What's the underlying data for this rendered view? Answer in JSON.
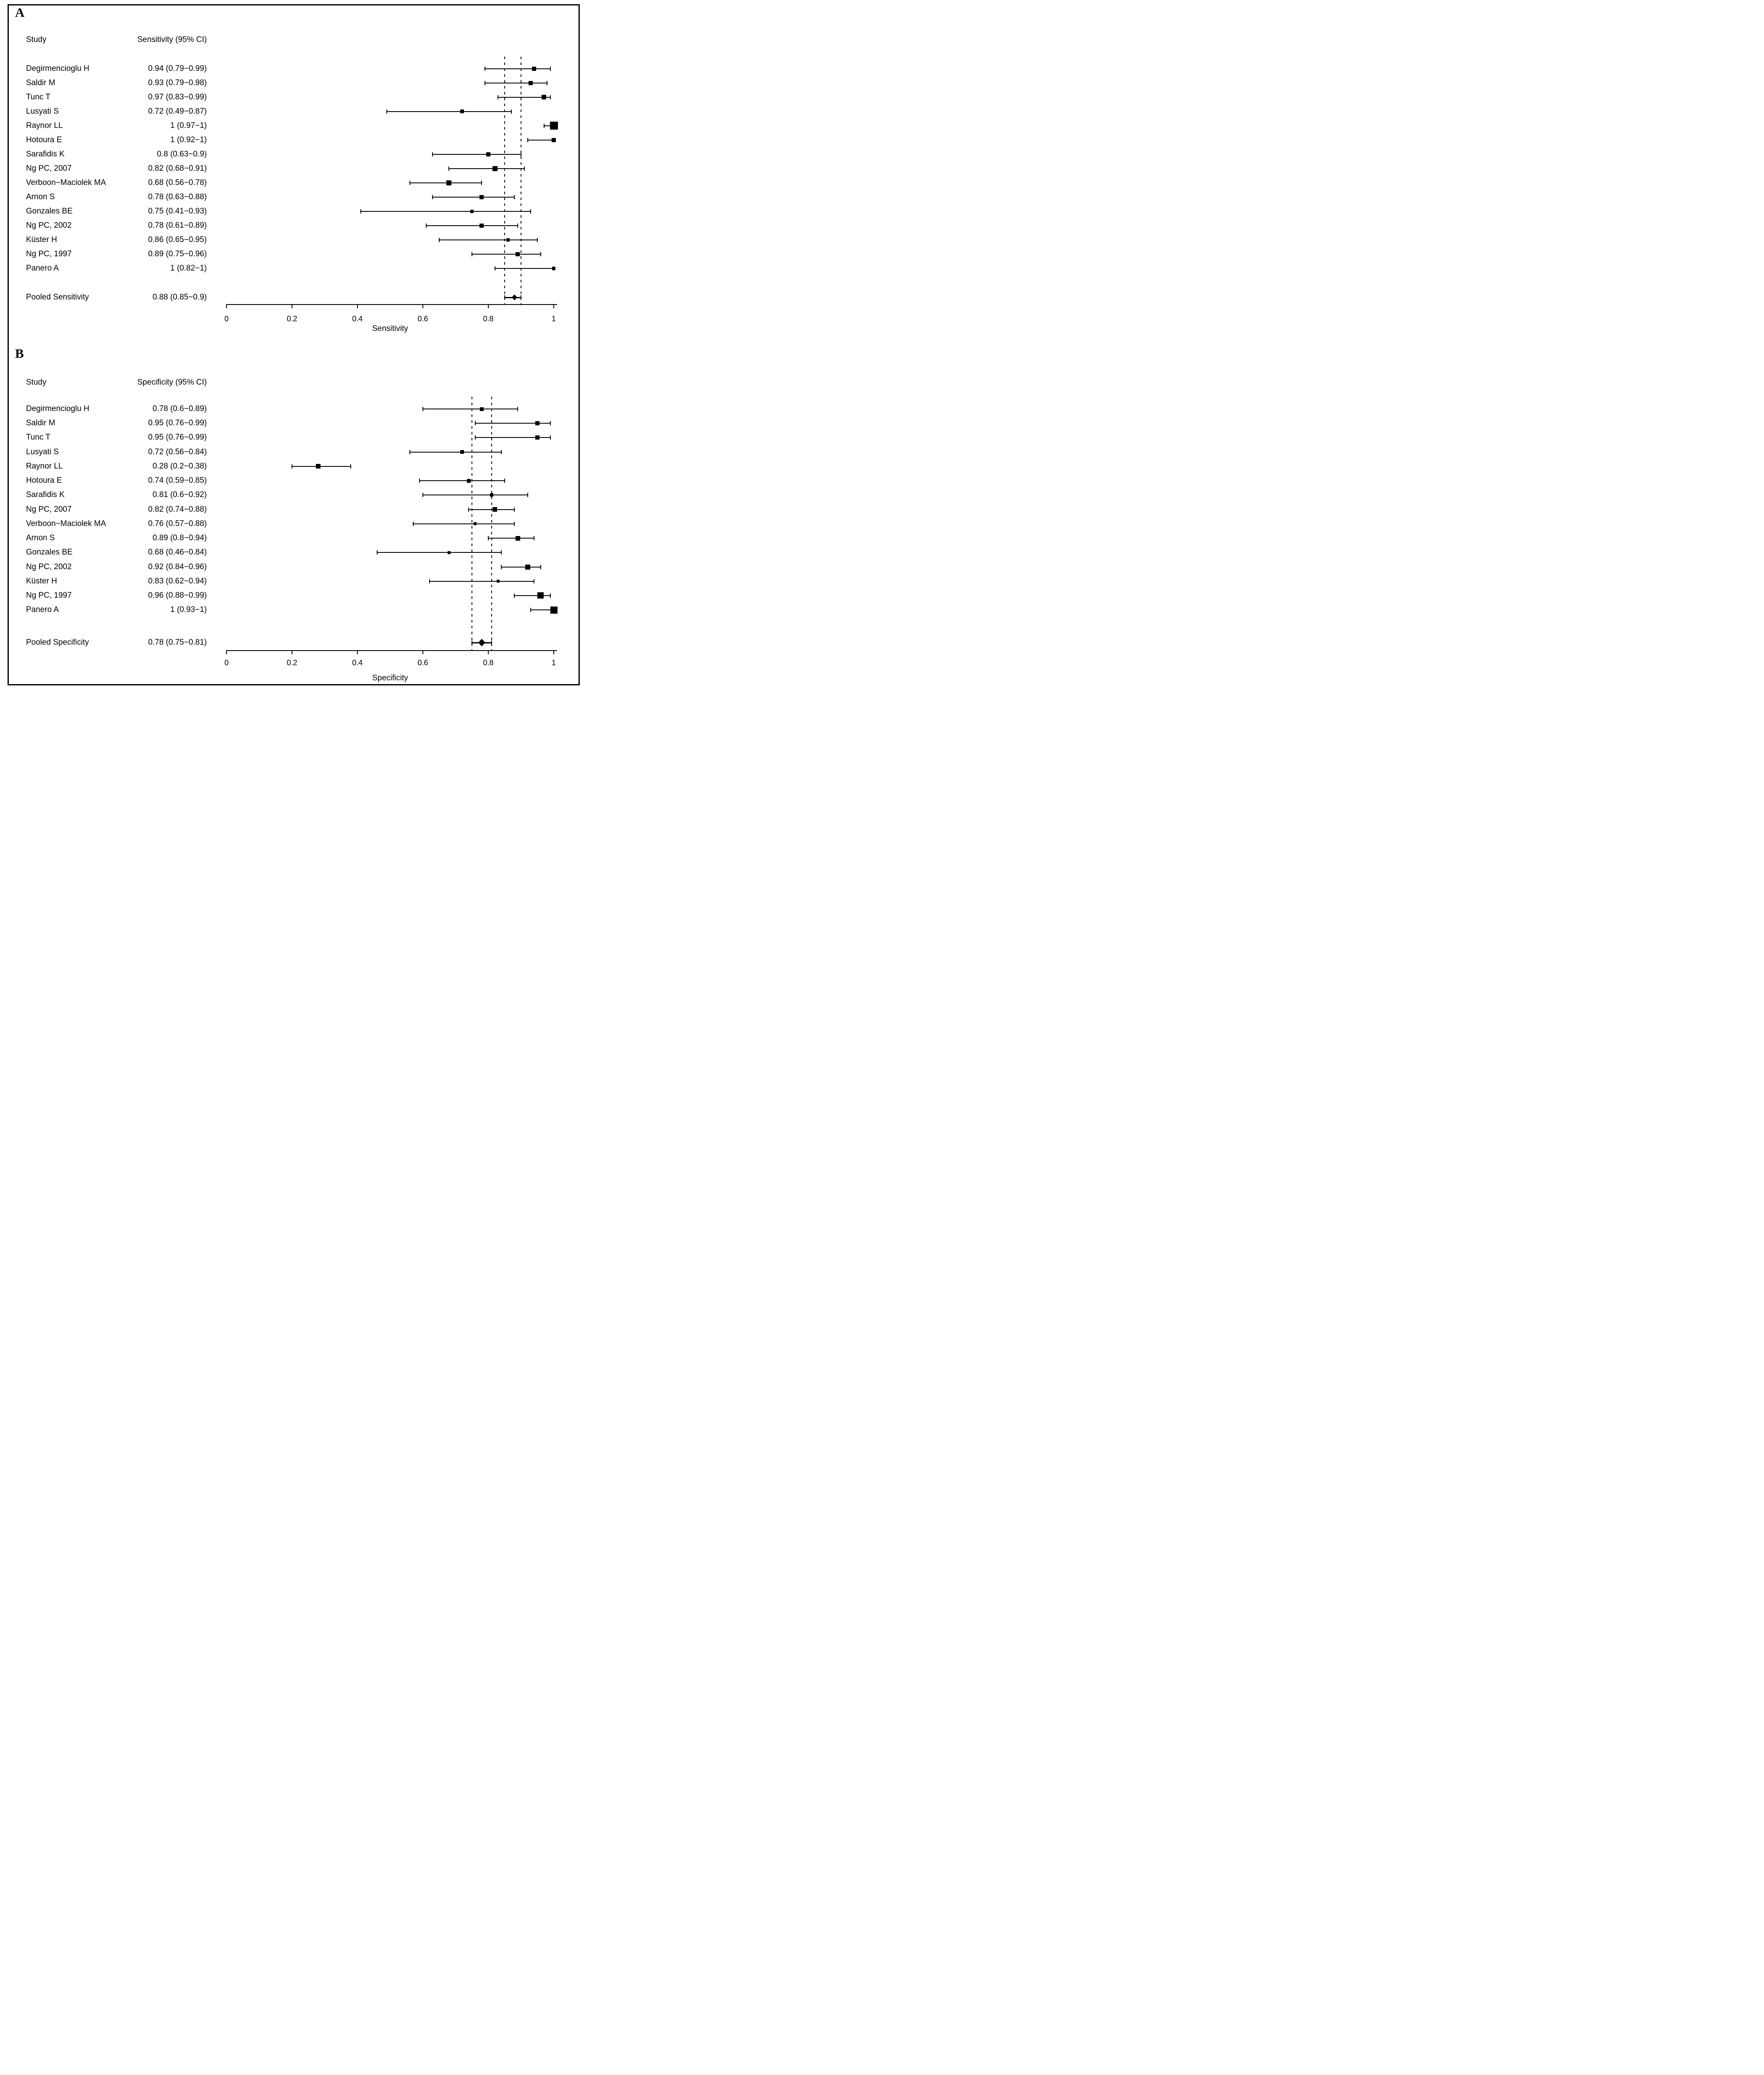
{
  "figure": {
    "background": "#ffffff",
    "border_color": "#000000",
    "ink_color": "#000000"
  },
  "chart_data": [
    {
      "type": "scatter",
      "subtype": "forest-plot",
      "panel_label": "A",
      "columns": {
        "study": "Study",
        "value": "Sensitivity (95% CI)"
      },
      "xlabel": "Sensitivity",
      "xlim": [
        0,
        1
      ],
      "x_ticks": [
        0,
        0.2,
        0.4,
        0.6,
        0.8,
        1
      ],
      "x_tick_labels": [
        "0",
        "0.2",
        "0.4",
        "0.6",
        "0.8",
        "1"
      ],
      "dashed_reference_lines": [
        0.85,
        0.9
      ],
      "grid": false,
      "legend": "none",
      "studies": [
        {
          "name": "Degirmencioglu H",
          "value_label": "0.94 (0.79−0.99)",
          "estimate": 0.94,
          "ci_low": 0.79,
          "ci_high": 0.99,
          "marker_px": 10
        },
        {
          "name": "Saldir M",
          "value_label": "0.93 (0.79−0.98)",
          "estimate": 0.93,
          "ci_low": 0.79,
          "ci_high": 0.98,
          "marker_px": 10
        },
        {
          "name": "Tunc T",
          "value_label": "0.97 (0.83−0.99)",
          "estimate": 0.97,
          "ci_low": 0.83,
          "ci_high": 0.99,
          "marker_px": 11
        },
        {
          "name": "Lusyati S",
          "value_label": "0.72 (0.49−0.87)",
          "estimate": 0.72,
          "ci_low": 0.49,
          "ci_high": 0.87,
          "marker_px": 9
        },
        {
          "name": "Raynor LL",
          "value_label": "1 (0.97−1)",
          "estimate": 1,
          "ci_low": 0.97,
          "ci_high": 1,
          "marker_px": 19
        },
        {
          "name": "Hotoura E",
          "value_label": "1 (0.92−1)",
          "estimate": 1,
          "ci_low": 0.92,
          "ci_high": 1,
          "marker_px": 10
        },
        {
          "name": "Sarafidis K",
          "value_label": "0.8 (0.63−0.9)",
          "estimate": 0.8,
          "ci_low": 0.63,
          "ci_high": 0.9,
          "marker_px": 10
        },
        {
          "name": "Ng PC, 2007",
          "value_label": "0.82 (0.68−0.91)",
          "estimate": 0.82,
          "ci_low": 0.68,
          "ci_high": 0.91,
          "marker_px": 12
        },
        {
          "name": "Verboon−Maciolek MA",
          "value_label": "0.68 (0.56−0.78)",
          "estimate": 0.68,
          "ci_low": 0.56,
          "ci_high": 0.78,
          "marker_px": 12
        },
        {
          "name": "Arnon S",
          "value_label": "0.78 (0.63−0.88)",
          "estimate": 0.78,
          "ci_low": 0.63,
          "ci_high": 0.88,
          "marker_px": 10
        },
        {
          "name": "Gonzales BE",
          "value_label": "0.75 (0.41−0.93)",
          "estimate": 0.75,
          "ci_low": 0.41,
          "ci_high": 0.93,
          "marker_px": 8
        },
        {
          "name": "Ng PC, 2002",
          "value_label": "0.78 (0.61−0.89)",
          "estimate": 0.78,
          "ci_low": 0.61,
          "ci_high": 0.89,
          "marker_px": 10
        },
        {
          "name": "Küster H",
          "value_label": "0.86 (0.65−0.95)",
          "estimate": 0.86,
          "ci_low": 0.65,
          "ci_high": 0.95,
          "marker_px": 8
        },
        {
          "name": "Ng PC, 1997",
          "value_label": "0.89 (0.75−0.96)",
          "estimate": 0.89,
          "ci_low": 0.75,
          "ci_high": 0.96,
          "marker_px": 10
        },
        {
          "name": "Panero A",
          "value_label": "1 (0.82−1)",
          "estimate": 1,
          "ci_low": 0.82,
          "ci_high": 1,
          "marker_px": 8
        }
      ],
      "pooled": {
        "name": "Pooled Sensitivity",
        "value_label": "0.88 (0.85−0.9)",
        "estimate": 0.88,
        "ci_low": 0.85,
        "ci_high": 0.9
      }
    },
    {
      "type": "scatter",
      "subtype": "forest-plot",
      "panel_label": "B",
      "columns": {
        "study": "Study",
        "value": "Specificity (95% CI)"
      },
      "xlabel": "Specificity",
      "xlim": [
        0,
        1
      ],
      "x_ticks": [
        0,
        0.2,
        0.4,
        0.6,
        0.8,
        1
      ],
      "x_tick_labels": [
        "0",
        "0.2",
        "0.4",
        "0.6",
        "0.8",
        "1"
      ],
      "dashed_reference_lines": [
        0.75,
        0.81
      ],
      "grid": false,
      "legend": "none",
      "studies": [
        {
          "name": "Degirmencioglu H",
          "value_label": "0.78 (0.6−0.89)",
          "estimate": 0.78,
          "ci_low": 0.6,
          "ci_high": 0.89,
          "marker_px": 9
        },
        {
          "name": "Saldir M",
          "value_label": "0.95 (0.76−0.99)",
          "estimate": 0.95,
          "ci_low": 0.76,
          "ci_high": 0.99,
          "marker_px": 10
        },
        {
          "name": "Tunc T",
          "value_label": "0.95 (0.76−0.99)",
          "estimate": 0.95,
          "ci_low": 0.76,
          "ci_high": 0.99,
          "marker_px": 10
        },
        {
          "name": "Lusyati S",
          "value_label": "0.72 (0.56−0.84)",
          "estimate": 0.72,
          "ci_low": 0.56,
          "ci_high": 0.84,
          "marker_px": 9
        },
        {
          "name": "Raynor LL",
          "value_label": "0.28 (0.2−0.38)",
          "estimate": 0.28,
          "ci_low": 0.2,
          "ci_high": 0.38,
          "marker_px": 11
        },
        {
          "name": "Hotoura E",
          "value_label": "0.74 (0.59−0.85)",
          "estimate": 0.74,
          "ci_low": 0.59,
          "ci_high": 0.85,
          "marker_px": 9
        },
        {
          "name": "Sarafidis K",
          "value_label": "0.81 (0.6−0.92)",
          "estimate": 0.81,
          "ci_low": 0.6,
          "ci_high": 0.92,
          "marker_px": 8
        },
        {
          "name": "Ng PC, 2007",
          "value_label": "0.82 (0.74−0.88)",
          "estimate": 0.82,
          "ci_low": 0.74,
          "ci_high": 0.88,
          "marker_px": 11
        },
        {
          "name": "Verboon−Maciolek MA",
          "value_label": "0.76 (0.57−0.88)",
          "estimate": 0.76,
          "ci_low": 0.57,
          "ci_high": 0.88,
          "marker_px": 7
        },
        {
          "name": "Arnon S",
          "value_label": "0.89 (0.8−0.94)",
          "estimate": 0.89,
          "ci_low": 0.8,
          "ci_high": 0.94,
          "marker_px": 11
        },
        {
          "name": "Gonzales BE",
          "value_label": "0.68 (0.46−0.84)",
          "estimate": 0.68,
          "ci_low": 0.46,
          "ci_high": 0.84,
          "marker_px": 7
        },
        {
          "name": "Ng PC, 2002",
          "value_label": "0.92 (0.84−0.96)",
          "estimate": 0.92,
          "ci_low": 0.84,
          "ci_high": 0.96,
          "marker_px": 12
        },
        {
          "name": "Küster H",
          "value_label": "0.83 (0.62−0.94)",
          "estimate": 0.83,
          "ci_low": 0.62,
          "ci_high": 0.94,
          "marker_px": 7
        },
        {
          "name": "Ng PC, 1997",
          "value_label": "0.96 (0.88−0.99)",
          "estimate": 0.96,
          "ci_low": 0.88,
          "ci_high": 0.99,
          "marker_px": 15
        },
        {
          "name": "Panero A",
          "value_label": "1 (0.93−1)",
          "estimate": 1,
          "ci_low": 0.93,
          "ci_high": 1,
          "marker_px": 17
        }
      ],
      "pooled": {
        "name": "Pooled Specificity",
        "value_label": "0.78 (0.75−0.81)",
        "estimate": 0.78,
        "ci_low": 0.75,
        "ci_high": 0.81
      }
    }
  ]
}
